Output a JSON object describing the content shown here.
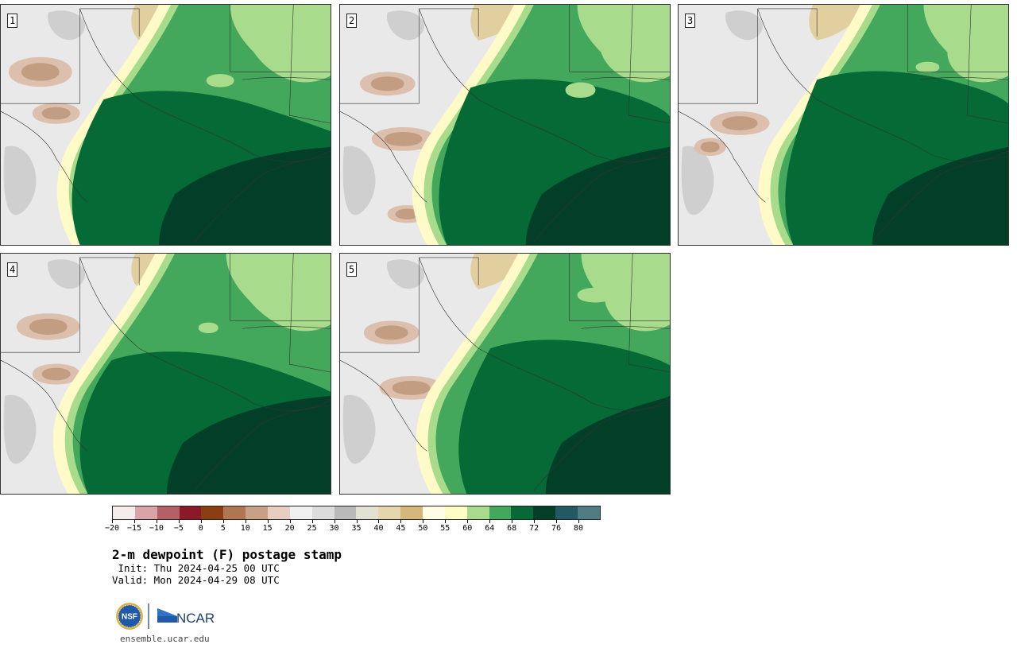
{
  "panels": [
    {
      "number": "1"
    },
    {
      "number": "2"
    },
    {
      "number": "3"
    },
    {
      "number": "4"
    },
    {
      "number": "5"
    }
  ],
  "colorbar": {
    "colors": [
      "#f5ecec",
      "#d9a3a8",
      "#b55f67",
      "#8b1a28",
      "#8b3e12",
      "#b07652",
      "#c99f86",
      "#e6cfc1",
      "#f0f0f0",
      "#dcdcdc",
      "#b9b9b9",
      "#e2e2d2",
      "#e6d6ae",
      "#d4b77a",
      "#fffde5",
      "#ffffc4",
      "#a8dc8c",
      "#44a85c",
      "#066a36",
      "#033f28",
      "#235962",
      "#4e7e84"
    ],
    "ticks": [
      "−20",
      "−15",
      "−10",
      "−5",
      "0",
      "5",
      "10",
      "15",
      "20",
      "25",
      "30",
      "35",
      "40",
      "45",
      "50",
      "55",
      "60",
      "64",
      "68",
      "72",
      "76",
      "80"
    ]
  },
  "title": "2-m dewpoint (F) postage stamp",
  "init_line": " Init: Thu 2024-04-25 00 UTC",
  "valid_line": "Valid: Mon 2024-04-29 08 UTC",
  "logos": {
    "nsf": "NSF",
    "ncar": "NCAR"
  },
  "url": "ensemble.ucar.edu",
  "map_colors": {
    "dry_gray": "#e9e9e9",
    "gray_mid": "#cfcfcf",
    "brown_light": "#dcc0ad",
    "brown_mid": "#c29d82",
    "brown_dark": "#9c6743",
    "tan": "#e2cfa0",
    "cream": "#fffbc8",
    "green_light": "#a8dc8c",
    "green_mid": "#44a85c",
    "green_dark": "#066a36",
    "green_darkest": "#033f28"
  }
}
